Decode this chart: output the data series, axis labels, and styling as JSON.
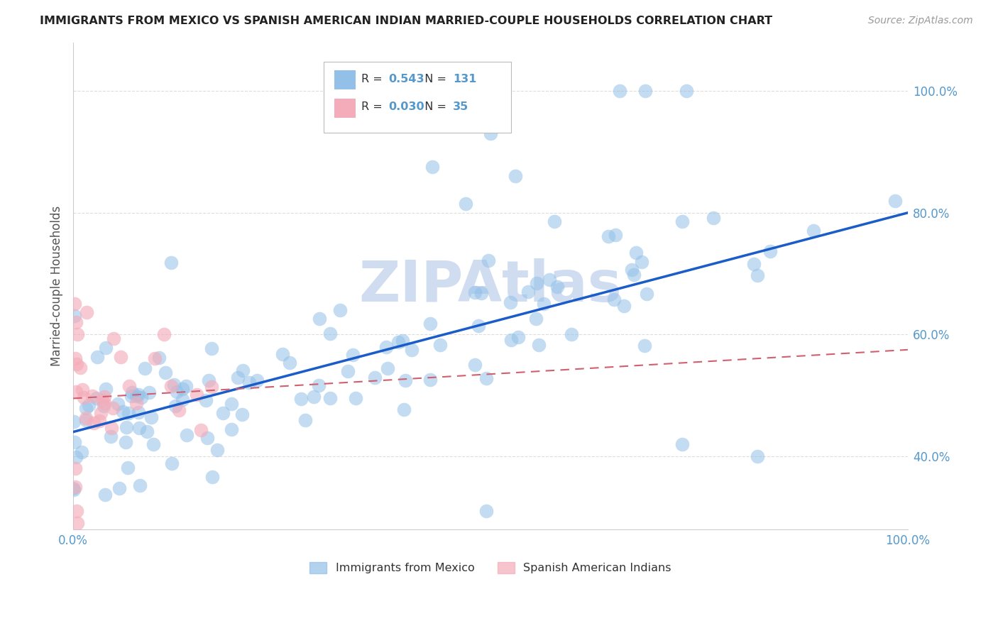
{
  "title": "IMMIGRANTS FROM MEXICO VS SPANISH AMERICAN INDIAN MARRIED-COUPLE HOUSEHOLDS CORRELATION CHART",
  "source": "Source: ZipAtlas.com",
  "ylabel": "Married-couple Households",
  "legend1_label": "Immigrants from Mexico",
  "legend2_label": "Spanish American Indians",
  "R1": "0.543",
  "N1": "131",
  "R2": "0.030",
  "N2": "35",
  "blue_color": "#92C0E8",
  "pink_color": "#F4ACBA",
  "blue_line_color": "#1A5CC8",
  "pink_line_color": "#D06070",
  "watermark_color": "#D0DCF0",
  "background_color": "#FFFFFF",
  "grid_color": "#DDDDDD",
  "tick_color": "#5599CC",
  "ylabel_color": "#555555",
  "title_color": "#222222",
  "source_color": "#999999",
  "legend_text_color": "#333333",
  "ylim_low": 0.28,
  "ylim_high": 1.08,
  "xlim_low": 0.0,
  "xlim_high": 1.0,
  "ytick_positions": [
    0.4,
    0.6,
    0.8,
    1.0
  ],
  "ytick_labels": [
    "40.0%",
    "60.0%",
    "80.0%",
    "100.0%"
  ],
  "xtick_positions": [
    0.0,
    1.0
  ],
  "xtick_labels": [
    "0.0%",
    "100.0%"
  ]
}
